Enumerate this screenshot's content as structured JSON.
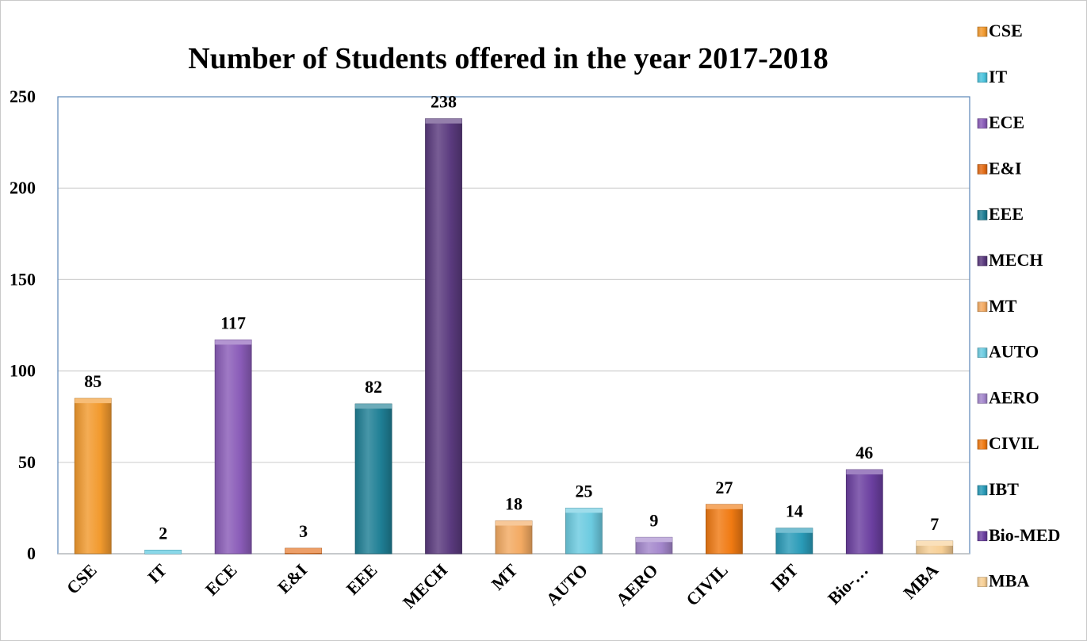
{
  "chart_data": {
    "type": "bar",
    "title": "Number of Students offered in the year 2017-2018",
    "xlabel": "",
    "ylabel": "",
    "ylim": [
      0,
      250
    ],
    "yticks": [
      "0",
      "50",
      "100",
      "150",
      "200",
      "250"
    ],
    "grid": true,
    "legend_position": "right",
    "categories": [
      "CSE",
      "IT",
      "ECE",
      "E&I",
      "EEE",
      "MECH",
      "MT",
      "AUTO",
      "AERO",
      "CIVIL",
      "IBT",
      "Bio-MED",
      "MBA"
    ],
    "tick_labels": [
      "CSE",
      "IT",
      "ECE",
      "E&I",
      "EEE",
      "MECH",
      "MT",
      "AUTO",
      "AERO",
      "CIVIL",
      "IBT",
      "Bio-…",
      "MBA"
    ],
    "values": [
      85,
      2,
      117,
      3,
      82,
      238,
      18,
      25,
      9,
      27,
      14,
      46,
      7
    ],
    "data_labels": [
      "85",
      "2",
      "117",
      "3",
      "82",
      "238",
      "18",
      "25",
      "9",
      "27",
      "14",
      "46",
      "7"
    ],
    "colors": [
      "#f29a2e",
      "#4bc3dd",
      "#8a5cb8",
      "#e36c16",
      "#1f7f95",
      "#5a3a7e",
      "#f3aa62",
      "#6ccbe0",
      "#a487cc",
      "#f07a12",
      "#2a9bb8",
      "#6b3fa0",
      "#f7cf95"
    ],
    "legend": [
      "CSE",
      "IT",
      "ECE",
      "E&I",
      "EEE",
      "MECH",
      "MT",
      "AUTO",
      "AERO",
      "CIVIL",
      "IBT",
      "Bio-MED",
      "MBA"
    ]
  }
}
